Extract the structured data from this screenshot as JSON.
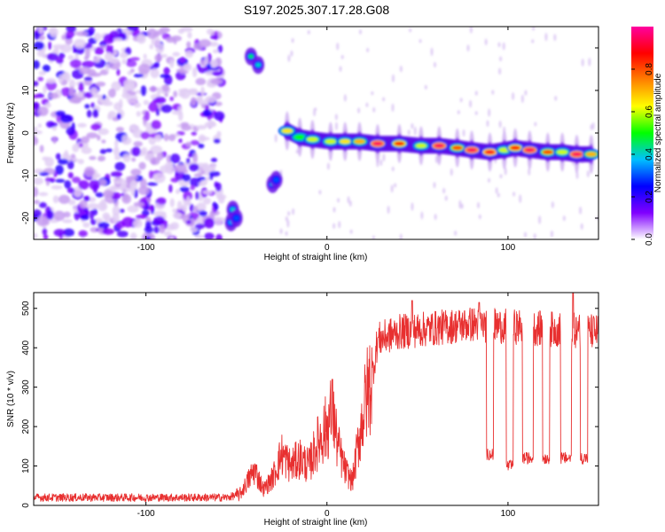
{
  "title": "S197.2025.307.17.28.G08",
  "chart_data": [
    {
      "type": "heatmap",
      "name": "spectrogram",
      "xlabel": "Height of straight line (km)",
      "ylabel": "Frequency (Hz)",
      "xlim": [
        -162,
        150
      ],
      "ylim": [
        -25,
        25
      ],
      "x_ticks": [
        -100,
        0,
        100
      ],
      "y_ticks": [
        -20,
        -10,
        0,
        10,
        20
      ],
      "x_tick_labels": [
        "-100",
        "0",
        "100"
      ],
      "y_tick_labels": [
        "-20",
        "-10",
        "0",
        "10",
        "20"
      ],
      "colorbar": {
        "label": "Normalized spectral amplitude",
        "range": [
          0,
          1
        ],
        "ticks": [
          "0.0",
          "0.2",
          "0.4",
          "0.6",
          "0.8"
        ],
        "colors": [
          "#ffffff",
          "#8000ff",
          "#0000ff",
          "#00c0ff",
          "#00ff00",
          "#ffff00",
          "#ff8000",
          "#ff0000",
          "#ff00a0"
        ]
      },
      "noise_region_x": [
        -162,
        -58
      ],
      "ridge": [
        {
          "x": -22,
          "y": 0.5,
          "a": 0.65
        },
        {
          "x": -15,
          "y": -1.0,
          "a": 0.5
        },
        {
          "x": -8,
          "y": -1.5,
          "a": 0.6
        },
        {
          "x": 2,
          "y": -2.0,
          "a": 0.6
        },
        {
          "x": 10,
          "y": -2.0,
          "a": 0.65
        },
        {
          "x": 18,
          "y": -2.0,
          "a": 0.7
        },
        {
          "x": 28,
          "y": -2.5,
          "a": 0.95
        },
        {
          "x": 40,
          "y": -2.5,
          "a": 0.85
        },
        {
          "x": 52,
          "y": -3.0,
          "a": 0.6
        },
        {
          "x": 62,
          "y": -3.0,
          "a": 0.95
        },
        {
          "x": 72,
          "y": -3.5,
          "a": 0.8
        },
        {
          "x": 80,
          "y": -4.0,
          "a": 0.95
        },
        {
          "x": 90,
          "y": -4.5,
          "a": 0.9
        },
        {
          "x": 98,
          "y": -4.0,
          "a": 0.6
        },
        {
          "x": 104,
          "y": -3.5,
          "a": 0.85
        },
        {
          "x": 112,
          "y": -4.0,
          "a": 0.95
        },
        {
          "x": 122,
          "y": -4.5,
          "a": 0.8
        },
        {
          "x": 130,
          "y": -4.5,
          "a": 0.6
        },
        {
          "x": 138,
          "y": -5.0,
          "a": 0.95
        },
        {
          "x": 146,
          "y": -5.0,
          "a": 0.7
        }
      ],
      "blobs": [
        {
          "x": -52,
          "y": -18,
          "a": 0.4
        },
        {
          "x": -53,
          "y": -21,
          "a": 0.35
        },
        {
          "x": -50,
          "y": -20,
          "a": 0.3
        },
        {
          "x": -42,
          "y": 18,
          "a": 0.45
        },
        {
          "x": -38,
          "y": 16,
          "a": 0.4
        },
        {
          "x": -30,
          "y": -12,
          "a": 0.4
        },
        {
          "x": -28,
          "y": -11,
          "a": 0.3
        }
      ]
    },
    {
      "type": "line",
      "name": "snr",
      "xlabel": "Height of straight line (km)",
      "ylabel": "SNR (10 * v/v)",
      "xlim": [
        -162,
        150
      ],
      "ylim": [
        0,
        540
      ],
      "x_ticks": [
        -100,
        0,
        100
      ],
      "y_ticks": [
        0,
        100,
        200,
        300,
        400,
        500
      ],
      "x_tick_labels": [
        "-100",
        "0",
        "100"
      ],
      "y_tick_labels": [
        "0",
        "100",
        "200",
        "300",
        "400",
        "500"
      ],
      "color": "#e83030",
      "envelope": [
        {
          "x": -162,
          "y": 20
        },
        {
          "x": -55,
          "y": 20
        },
        {
          "x": -48,
          "y": 28
        },
        {
          "x": -44,
          "y": 60
        },
        {
          "x": -40,
          "y": 90
        },
        {
          "x": -35,
          "y": 40
        },
        {
          "x": -30,
          "y": 70
        },
        {
          "x": -25,
          "y": 130
        },
        {
          "x": -20,
          "y": 100
        },
        {
          "x": -15,
          "y": 120
        },
        {
          "x": -10,
          "y": 100
        },
        {
          "x": -5,
          "y": 160
        },
        {
          "x": 0,
          "y": 200
        },
        {
          "x": 3,
          "y": 240
        },
        {
          "x": 6,
          "y": 150
        },
        {
          "x": 10,
          "y": 90
        },
        {
          "x": 14,
          "y": 60
        },
        {
          "x": 18,
          "y": 180
        },
        {
          "x": 22,
          "y": 280
        },
        {
          "x": 25,
          "y": 330
        },
        {
          "x": 28,
          "y": 420
        },
        {
          "x": 40,
          "y": 440
        },
        {
          "x": 60,
          "y": 450
        },
        {
          "x": 80,
          "y": 460
        },
        {
          "x": 150,
          "y": 440
        }
      ],
      "dips": [
        {
          "x": 90,
          "w": 2,
          "y": 130
        },
        {
          "x": 101,
          "w": 2,
          "y": 100
        },
        {
          "x": 111,
          "w": 3,
          "y": 120
        },
        {
          "x": 121,
          "w": 2,
          "y": 120
        },
        {
          "x": 132,
          "w": 3,
          "y": 120
        },
        {
          "x": 142,
          "w": 2,
          "y": 120
        }
      ],
      "spikes": [
        {
          "x": 3,
          "y": 320
        },
        {
          "x": 47,
          "y": 520
        },
        {
          "x": 84,
          "y": 515
        },
        {
          "x": 136,
          "y": 540
        }
      ]
    }
  ]
}
